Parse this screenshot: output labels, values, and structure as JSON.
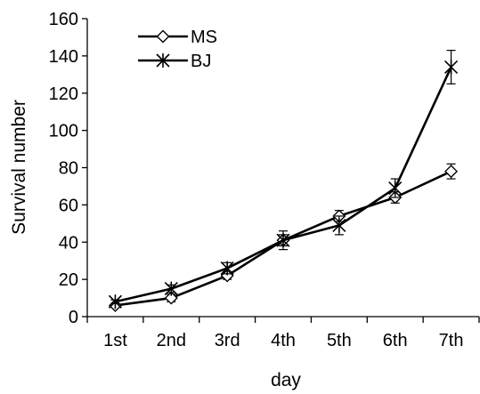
{
  "chart_data": {
    "type": "line",
    "title": "",
    "xlabel": "day",
    "ylabel": "Survival number",
    "categories": [
      "1st",
      "2nd",
      "3rd",
      "4th",
      "5th",
      "6th",
      "7th"
    ],
    "ylim": [
      0,
      160
    ],
    "yticks": [
      0,
      20,
      40,
      60,
      80,
      100,
      120,
      140,
      160
    ],
    "grid": false,
    "legend_position": "top-left",
    "series": [
      {
        "name": "MS",
        "marker": "diamond",
        "color": "#000000",
        "values": [
          6,
          10,
          22,
          41,
          54,
          64,
          78
        ],
        "errors": [
          1,
          2,
          2,
          3,
          3,
          3,
          4
        ]
      },
      {
        "name": "BJ",
        "marker": "asterisk",
        "color": "#000000",
        "values": [
          8,
          15,
          26,
          41,
          49,
          69,
          134
        ],
        "errors": [
          1,
          2,
          3,
          5,
          5,
          5,
          9
        ]
      }
    ]
  }
}
